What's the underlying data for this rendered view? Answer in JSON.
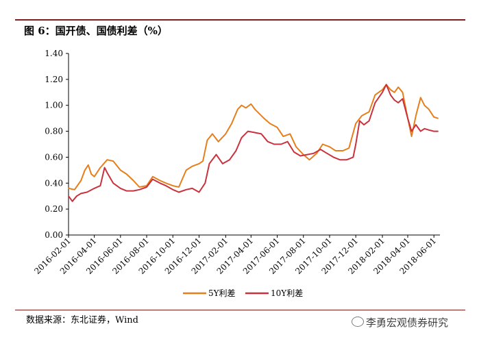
{
  "figure": {
    "title": "图 6：国开债、国债利差（%）",
    "source": "数据来源：东北证券，Wind",
    "watermark": "李勇宏观债券研究",
    "watermark_icon": "wechat-icon"
  },
  "colors": {
    "series_5y": "#e67e1a",
    "series_10y": "#c9313c",
    "rule": "#7f1d1d"
  },
  "chart_data": {
    "type": "line",
    "xlabel": "",
    "ylabel": "",
    "ylim": [
      0,
      1.4
    ],
    "yticks": [
      "0.00",
      "0.20",
      "0.40",
      "0.60",
      "0.80",
      "1.00",
      "1.20",
      "1.40"
    ],
    "xlim": [
      "2016-02-01",
      "2018-06-15"
    ],
    "xticks": [
      "2016-02-01",
      "2016-04-01",
      "2016-06-01",
      "2016-08-01",
      "2016-10-01",
      "2016-12-01",
      "2017-02-01",
      "2017-04-01",
      "2017-06-01",
      "2017-08-01",
      "2017-10-01",
      "2017-12-01",
      "2018-02-01",
      "2018-04-01",
      "2018-06-01"
    ],
    "grid": false,
    "legend_position": "bottom",
    "series": [
      {
        "name": "5Y利差",
        "points": [
          [
            "2016-02-01",
            0.36
          ],
          [
            "2016-02-15",
            0.35
          ],
          [
            "2016-03-01",
            0.42
          ],
          [
            "2016-03-10",
            0.5
          ],
          [
            "2016-03-18",
            0.54
          ],
          [
            "2016-03-25",
            0.47
          ],
          [
            "2016-04-01",
            0.45
          ],
          [
            "2016-04-15",
            0.52
          ],
          [
            "2016-05-01",
            0.58
          ],
          [
            "2016-05-15",
            0.57
          ],
          [
            "2016-06-01",
            0.5
          ],
          [
            "2016-06-15",
            0.47
          ],
          [
            "2016-07-01",
            0.42
          ],
          [
            "2016-07-15",
            0.37
          ],
          [
            "2016-08-01",
            0.38
          ],
          [
            "2016-08-15",
            0.45
          ],
          [
            "2016-09-01",
            0.42
          ],
          [
            "2016-09-15",
            0.4
          ],
          [
            "2016-10-01",
            0.38
          ],
          [
            "2016-10-15",
            0.37
          ],
          [
            "2016-11-01",
            0.5
          ],
          [
            "2016-11-15",
            0.53
          ],
          [
            "2016-12-01",
            0.55
          ],
          [
            "2016-12-10",
            0.57
          ],
          [
            "2016-12-20",
            0.73
          ],
          [
            "2017-01-01",
            0.78
          ],
          [
            "2017-01-15",
            0.72
          ],
          [
            "2017-02-01",
            0.78
          ],
          [
            "2017-02-15",
            0.86
          ],
          [
            "2017-03-01",
            0.97
          ],
          [
            "2017-03-10",
            1.0
          ],
          [
            "2017-03-20",
            0.98
          ],
          [
            "2017-04-01",
            1.01
          ],
          [
            "2017-04-10",
            0.97
          ],
          [
            "2017-05-01",
            0.9
          ],
          [
            "2017-05-15",
            0.86
          ],
          [
            "2017-06-01",
            0.83
          ],
          [
            "2017-06-15",
            0.76
          ],
          [
            "2017-07-01",
            0.78
          ],
          [
            "2017-07-15",
            0.68
          ],
          [
            "2017-08-01",
            0.62
          ],
          [
            "2017-08-15",
            0.58
          ],
          [
            "2017-09-01",
            0.63
          ],
          [
            "2017-09-15",
            0.7
          ],
          [
            "2017-10-01",
            0.68
          ],
          [
            "2017-10-15",
            0.65
          ],
          [
            "2017-11-01",
            0.65
          ],
          [
            "2017-11-15",
            0.67
          ],
          [
            "2017-12-01",
            0.86
          ],
          [
            "2017-12-15",
            0.92
          ],
          [
            "2018-01-01",
            0.95
          ],
          [
            "2018-01-15",
            1.08
          ],
          [
            "2018-02-01",
            1.12
          ],
          [
            "2018-02-10",
            1.16
          ],
          [
            "2018-02-20",
            1.12
          ],
          [
            "2018-03-01",
            1.1
          ],
          [
            "2018-03-10",
            1.14
          ],
          [
            "2018-03-20",
            1.1
          ],
          [
            "2018-04-01",
            0.9
          ],
          [
            "2018-04-10",
            0.76
          ],
          [
            "2018-04-20",
            0.92
          ],
          [
            "2018-05-01",
            1.06
          ],
          [
            "2018-05-10",
            1.0
          ],
          [
            "2018-05-20",
            0.97
          ],
          [
            "2018-06-01",
            0.91
          ],
          [
            "2018-06-10",
            0.9
          ]
        ]
      },
      {
        "name": "10Y利差",
        "points": [
          [
            "2016-02-01",
            0.3
          ],
          [
            "2016-02-10",
            0.26
          ],
          [
            "2016-02-20",
            0.3
          ],
          [
            "2016-03-01",
            0.32
          ],
          [
            "2016-03-15",
            0.33
          ],
          [
            "2016-04-01",
            0.36
          ],
          [
            "2016-04-15",
            0.38
          ],
          [
            "2016-04-25",
            0.52
          ],
          [
            "2016-05-01",
            0.48
          ],
          [
            "2016-05-15",
            0.4
          ],
          [
            "2016-06-01",
            0.36
          ],
          [
            "2016-06-15",
            0.34
          ],
          [
            "2016-07-01",
            0.34
          ],
          [
            "2016-07-15",
            0.35
          ],
          [
            "2016-08-01",
            0.37
          ],
          [
            "2016-08-15",
            0.43
          ],
          [
            "2016-09-01",
            0.4
          ],
          [
            "2016-09-15",
            0.38
          ],
          [
            "2016-10-01",
            0.35
          ],
          [
            "2016-10-15",
            0.33
          ],
          [
            "2016-11-01",
            0.35
          ],
          [
            "2016-11-15",
            0.36
          ],
          [
            "2016-12-01",
            0.33
          ],
          [
            "2016-12-15",
            0.4
          ],
          [
            "2016-12-25",
            0.55
          ],
          [
            "2017-01-10",
            0.62
          ],
          [
            "2017-01-25",
            0.55
          ],
          [
            "2017-02-10",
            0.58
          ],
          [
            "2017-02-25",
            0.65
          ],
          [
            "2017-03-10",
            0.75
          ],
          [
            "2017-03-25",
            0.8
          ],
          [
            "2017-04-10",
            0.79
          ],
          [
            "2017-04-25",
            0.78
          ],
          [
            "2017-05-10",
            0.72
          ],
          [
            "2017-05-25",
            0.7
          ],
          [
            "2017-06-10",
            0.7
          ],
          [
            "2017-06-25",
            0.72
          ],
          [
            "2017-07-10",
            0.64
          ],
          [
            "2017-07-25",
            0.61
          ],
          [
            "2017-08-10",
            0.62
          ],
          [
            "2017-08-25",
            0.63
          ],
          [
            "2017-09-10",
            0.66
          ],
          [
            "2017-09-25",
            0.63
          ],
          [
            "2017-10-10",
            0.6
          ],
          [
            "2017-10-25",
            0.58
          ],
          [
            "2017-11-10",
            0.58
          ],
          [
            "2017-11-25",
            0.6
          ],
          [
            "2017-12-01",
            0.7
          ],
          [
            "2017-12-10",
            0.88
          ],
          [
            "2017-12-20",
            0.85
          ],
          [
            "2018-01-01",
            0.88
          ],
          [
            "2018-01-15",
            1.02
          ],
          [
            "2018-02-01",
            1.1
          ],
          [
            "2018-02-10",
            1.16
          ],
          [
            "2018-02-20",
            1.08
          ],
          [
            "2018-03-01",
            1.04
          ],
          [
            "2018-03-10",
            1.02
          ],
          [
            "2018-03-20",
            1.05
          ],
          [
            "2018-04-01",
            0.9
          ],
          [
            "2018-04-10",
            0.8
          ],
          [
            "2018-04-20",
            0.85
          ],
          [
            "2018-05-01",
            0.8
          ],
          [
            "2018-05-10",
            0.82
          ],
          [
            "2018-05-20",
            0.81
          ],
          [
            "2018-06-01",
            0.8
          ],
          [
            "2018-06-10",
            0.8
          ]
        ]
      }
    ]
  }
}
